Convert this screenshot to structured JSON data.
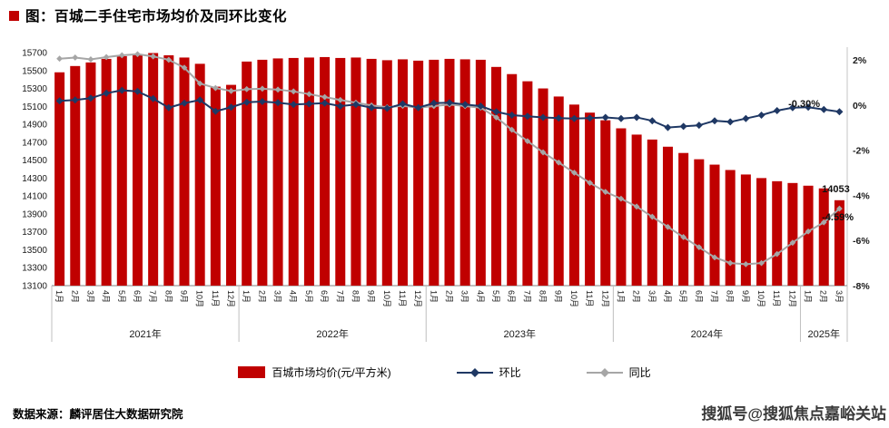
{
  "title": "图：百城二手住宅市场均价及同环比变化",
  "footer": {
    "source": "数据来源：麟评居住大数据研究院"
  },
  "watermark": "搜狐号@搜狐焦点嘉峪关站",
  "colors": {
    "bar": "#C00000",
    "mom_line": "#1F3864",
    "yoy_line": "#A6A6A6",
    "title_bullet": "#C00000"
  },
  "legend": [
    {
      "label": "百城市场均价(元/平方米)",
      "type": "bar",
      "color": "#C00000"
    },
    {
      "label": "环比",
      "type": "line",
      "color": "#1F3864"
    },
    {
      "label": "同比",
      "type": "line",
      "color": "#A6A6A6"
    }
  ],
  "chart_data": {
    "type": "bar",
    "title": "百城二手住宅市场均价及同环比变化",
    "grid": false,
    "legend_position": "bottom",
    "x_months": [
      "1月",
      "2月",
      "3月",
      "4月",
      "5月",
      "6月",
      "7月",
      "8月",
      "9月",
      "10月",
      "11月",
      "12月",
      "1月",
      "2月",
      "3月",
      "4月",
      "5月",
      "6月",
      "7月",
      "8月",
      "9月",
      "10月",
      "11月",
      "12月",
      "1月",
      "2月",
      "3月",
      "4月",
      "5月",
      "6月",
      "7月",
      "8月",
      "9月",
      "10月",
      "11月",
      "12月",
      "1月",
      "2月",
      "3月",
      "4月",
      "5月",
      "6月",
      "7月",
      "8月",
      "9月",
      "10月",
      "11月",
      "12月",
      "1月",
      "2月",
      "3月"
    ],
    "year_groups": [
      {
        "label": "2021年",
        "months": 12
      },
      {
        "label": "2022年",
        "months": 12
      },
      {
        "label": "2023年",
        "months": 12
      },
      {
        "label": "2024年",
        "months": 12
      },
      {
        "label": "2025年",
        "months": 3
      }
    ],
    "left_axis": {
      "min": 13100,
      "max": 15700,
      "tick_step": 200,
      "ticks": [
        15700,
        15500,
        15300,
        15100,
        14900,
        14700,
        14500,
        14300,
        14100,
        13900,
        13700,
        13500,
        13300,
        13100
      ]
    },
    "right_axis": {
      "min": -8,
      "max": 2.6,
      "suffix": "%",
      "ticks": [
        2,
        0,
        -2,
        -4,
        -6,
        -8
      ]
    },
    "series": [
      {
        "name": "百城市场均价(元/平方米)",
        "type": "bar",
        "axis": "left",
        "color": "#C00000",
        "values": [
          15480,
          15550,
          15590,
          15630,
          15660,
          15685,
          15695,
          15670,
          15645,
          15575,
          15320,
          15340,
          15600,
          15620,
          15635,
          15640,
          15645,
          15650,
          15640,
          15645,
          15630,
          15615,
          15625,
          15610,
          15620,
          15630,
          15625,
          15620,
          15540,
          15460,
          15380,
          15300,
          15210,
          15120,
          15030,
          14945,
          14855,
          14785,
          14730,
          14650,
          14580,
          14510,
          14450,
          14390,
          14340,
          14300,
          14265,
          14245,
          14215,
          14185,
          14053
        ]
      },
      {
        "name": "环比",
        "type": "line",
        "axis": "right",
        "color": "#1F3864",
        "marker": "diamond",
        "values": [
          0.18,
          0.22,
          0.3,
          0.52,
          0.65,
          0.6,
          0.28,
          -0.12,
          0.08,
          0.22,
          -0.28,
          -0.1,
          0.12,
          0.15,
          0.1,
          0.02,
          0.05,
          0.08,
          -0.05,
          0.02,
          -0.12,
          -0.15,
          0.05,
          -0.12,
          0.08,
          0.1,
          0.02,
          -0.05,
          -0.3,
          -0.45,
          -0.5,
          -0.55,
          -0.58,
          -0.6,
          -0.58,
          -0.55,
          -0.6,
          -0.55,
          -0.7,
          -1.0,
          -0.95,
          -0.9,
          -0.7,
          -0.75,
          -0.6,
          -0.45,
          -0.25,
          -0.12,
          -0.1,
          -0.2,
          -0.3
        ]
      },
      {
        "name": "同比",
        "type": "line",
        "axis": "right",
        "color": "#A6A6A6",
        "marker": "diamond",
        "values": [
          2.05,
          2.1,
          2.02,
          2.12,
          2.2,
          2.25,
          2.15,
          2.0,
          1.65,
          0.95,
          0.75,
          0.62,
          0.7,
          0.72,
          0.68,
          0.6,
          0.48,
          0.35,
          0.22,
          0.1,
          -0.02,
          -0.1,
          -0.04,
          -0.12,
          -0.05,
          0.02,
          -0.05,
          -0.12,
          -0.55,
          -1.1,
          -1.6,
          -2.1,
          -2.55,
          -3.0,
          -3.45,
          -3.85,
          -4.15,
          -4.5,
          -4.95,
          -5.4,
          -5.85,
          -6.3,
          -6.75,
          -7.0,
          -7.05,
          -7.0,
          -6.6,
          -6.1,
          -5.6,
          -5.2,
          -4.59
        ]
      }
    ],
    "annotations": {
      "mom_end": "-0.30%",
      "last_price": "14053",
      "yoy_end": "-4.59%"
    }
  }
}
